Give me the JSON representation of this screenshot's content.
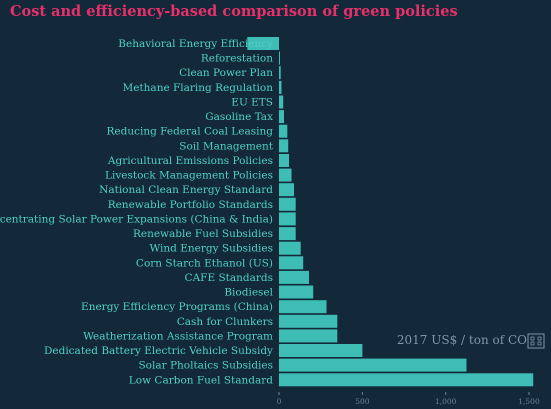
{
  "chart_data": {
    "type": "bar",
    "orientation": "horizontal",
    "title": "Cost and efficiency-based comparison of green policies",
    "unit_label": "2017 US$ / ton of CO",
    "categories": [
      "Behavioral Energy Efficiency",
      "Reforestation",
      "Clean Power Plan",
      "Methane Flaring Regulation",
      "EU ETS",
      "Gasoline Tax",
      "Reducing Federal Coal Leasing",
      "Soil Management",
      "Agricultural Emissions Policies",
      "Livestock Management Policies",
      "National Clean Energy Standard",
      "Renewable Portfolio Standards",
      "Concentrating Solar Power Expansions (China & India)",
      "Renewable Fuel Subsidies",
      "Wind Energy Subsidies",
      "Corn Starch Ethanol (US)",
      "CAFE Standards",
      "Biodiesel",
      "Energy Efficiency Programs (China)",
      "Cash for Clunkers",
      "Weatherization Assistance Program",
      "Dedicated Battery Electric Vehicle Subsidy",
      "Solar Pholtaics Subsidies",
      "Low Carbon Fuel Standard"
    ],
    "values": [
      -190,
      2,
      10,
      15,
      25,
      30,
      50,
      55,
      60,
      75,
      90,
      100,
      100,
      100,
      130,
      145,
      180,
      205,
      285,
      350,
      350,
      500,
      1125,
      1525
    ],
    "xticks": [
      0,
      500,
      1000,
      1500
    ],
    "xtick_labels": [
      "0",
      "500",
      "1,000",
      "1,500"
    ],
    "xlim": [
      -200,
      1600
    ],
    "grid": false,
    "colors": {
      "bar": "#3dbdb4",
      "label": "#4fd1c5",
      "title": "#e8306a",
      "background": "#13293a",
      "tick": "#6b8595"
    }
  }
}
